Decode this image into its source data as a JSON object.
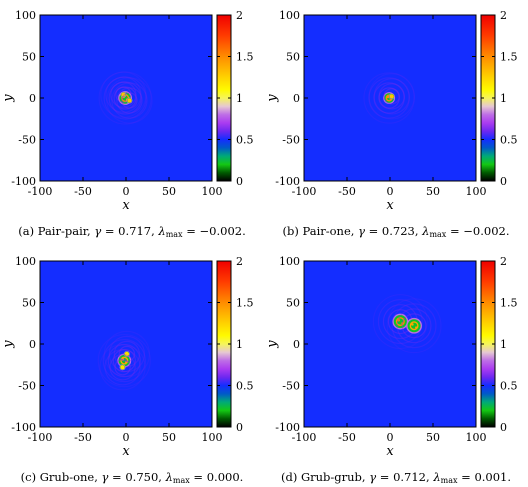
{
  "chart_data": [
    {
      "type": "heatmap",
      "panel_label": "(a)",
      "caption": {
        "label": "(a) Pair-pair,",
        "gamma_label": "γ",
        "gamma": "0.717",
        "lambda_label": "λ",
        "lambda_sub": "max",
        "lambda": "−0.002."
      },
      "xlabel": "x",
      "ylabel": "y",
      "xlim": [
        -100,
        100
      ],
      "ylim": [
        -100,
        100
      ],
      "xticks": [
        "-100",
        "-50",
        "0",
        "50",
        "100"
      ],
      "yticks": [
        "100",
        "50",
        "0",
        "-50",
        "-100"
      ],
      "colorbar": {
        "range": [
          0,
          2
        ],
        "ticks": [
          "2",
          "1.5",
          "1",
          "0.5",
          "0"
        ]
      },
      "background_value": 0.5,
      "blobs": [
        {
          "x": -1,
          "y": 0,
          "peak": 1.5,
          "radius": 7
        },
        {
          "x": -3,
          "y": 4,
          "peak": 1.3,
          "radius": 3
        },
        {
          "x": 4,
          "y": -3,
          "peak": 1.3,
          "radius": 3
        }
      ]
    },
    {
      "type": "heatmap",
      "panel_label": "(b)",
      "caption": {
        "label": "(b) Pair-one,",
        "gamma_label": "γ",
        "gamma": "0.723",
        "lambda_label": "λ",
        "lambda_sub": "max",
        "lambda": "−0.002."
      },
      "xlabel": "x",
      "ylabel": "y",
      "xlim": [
        -100,
        100
      ],
      "ylim": [
        -100,
        100
      ],
      "xticks": [
        "-100",
        "-50",
        "0",
        "50",
        "100"
      ],
      "yticks": [
        "100",
        "50",
        "0",
        "-50",
        "-100"
      ],
      "colorbar": {
        "range": [
          0,
          2
        ],
        "ticks": [
          "2",
          "1.5",
          "1",
          "0.5",
          "0"
        ]
      },
      "background_value": 0.5,
      "blobs": [
        {
          "x": -1,
          "y": 0,
          "peak": 1.5,
          "radius": 6
        },
        {
          "x": 2,
          "y": 2,
          "peak": 1.3,
          "radius": 3
        }
      ]
    },
    {
      "type": "heatmap",
      "panel_label": "(c)",
      "caption": {
        "label": "(c) Grub-one,",
        "gamma_label": "γ",
        "gamma": "0.750",
        "lambda_label": "λ",
        "lambda_sub": "max",
        "lambda": "0.000."
      },
      "xlabel": "x",
      "ylabel": "y",
      "xlim": [
        -100,
        100
      ],
      "ylim": [
        -100,
        100
      ],
      "xticks": [
        "-100",
        "-50",
        "0",
        "50",
        "100"
      ],
      "yticks": [
        "100",
        "50",
        "0",
        "-50",
        "-100"
      ],
      "colorbar": {
        "range": [
          0,
          2
        ],
        "ticks": [
          "2",
          "1.5",
          "1",
          "0.5",
          "0"
        ]
      },
      "background_value": 0.5,
      "blobs": [
        {
          "x": -2,
          "y": -20,
          "peak": 1.4,
          "radius": 7
        },
        {
          "x": 1,
          "y": -12,
          "peak": 1.2,
          "radius": 3
        },
        {
          "x": -4,
          "y": -28,
          "peak": 1.2,
          "radius": 3
        }
      ]
    },
    {
      "type": "heatmap",
      "panel_label": "(d)",
      "caption": {
        "label": "(d) Grub-grub,",
        "gamma_label": "γ",
        "gamma": "0.712",
        "lambda_label": "λ",
        "lambda_sub": "max",
        "lambda": "0.001."
      },
      "xlabel": "x",
      "ylabel": "y",
      "xlim": [
        -100,
        100
      ],
      "ylim": [
        -100,
        100
      ],
      "xticks": [
        "-100",
        "-50",
        "0",
        "50",
        "100"
      ],
      "yticks": [
        "100",
        "50",
        "0",
        "-50",
        "-100"
      ],
      "colorbar": {
        "range": [
          0,
          2
        ],
        "ticks": [
          "2",
          "1.5",
          "1",
          "0.5",
          "0"
        ]
      },
      "background_value": 0.5,
      "blobs": [
        {
          "x": 12,
          "y": 27,
          "peak": 1.5,
          "radius": 8
        },
        {
          "x": 28,
          "y": 22,
          "peak": 1.4,
          "radius": 8
        }
      ]
    }
  ]
}
